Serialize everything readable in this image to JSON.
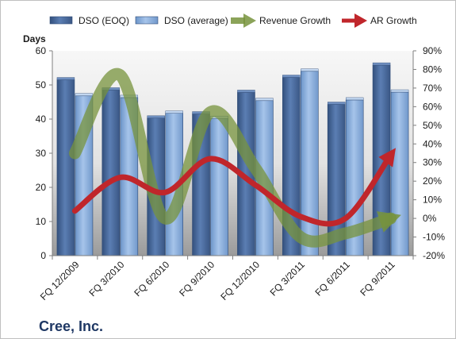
{
  "chart_data": {
    "type": "bar",
    "company": "Cree, Inc.",
    "ylabel": "Days",
    "categories": [
      "FQ 12/2009",
      "FQ 3/2010",
      "FQ 6/2010",
      "FQ 9/2010",
      "FQ 12/2010",
      "FQ 3/2011",
      "FQ 6/2011",
      "FQ 9/2011"
    ],
    "y_ticks": [
      "0",
      "10",
      "20",
      "30",
      "40",
      "50",
      "60"
    ],
    "y2_ticks": [
      "-20%",
      "-10%",
      "0%",
      "10%",
      "20%",
      "30%",
      "40%",
      "50%",
      "60%",
      "70%",
      "80%",
      "90%"
    ],
    "ylim": [
      0,
      60
    ],
    "y2lim": [
      -20,
      90
    ],
    "legend_position": "top",
    "grid": false,
    "series": [
      {
        "name": "DSO (EOQ)",
        "kind": "bar",
        "axis": "left",
        "color": "#4f6fa0",
        "values": [
          51.5,
          48.5,
          40.3,
          41.5,
          47.8,
          52.2,
          44.3,
          55.8
        ]
      },
      {
        "name": "DSO (average)",
        "kind": "bar",
        "axis": "left",
        "color": "#7fa6d6",
        "values": [
          46.8,
          46.3,
          41.7,
          40.2,
          45.4,
          54.0,
          45.6,
          47.9
        ]
      },
      {
        "name": "Revenue Growth",
        "kind": "line",
        "axis": "right",
        "color": "#77933c",
        "values": [
          35,
          77,
          0,
          57,
          27,
          -10,
          -8,
          0
        ]
      },
      {
        "name": "AR Growth",
        "kind": "line",
        "axis": "right",
        "color": "#c0262b",
        "values": [
          4,
          22,
          14,
          32,
          18,
          1,
          0,
          34
        ]
      }
    ]
  }
}
